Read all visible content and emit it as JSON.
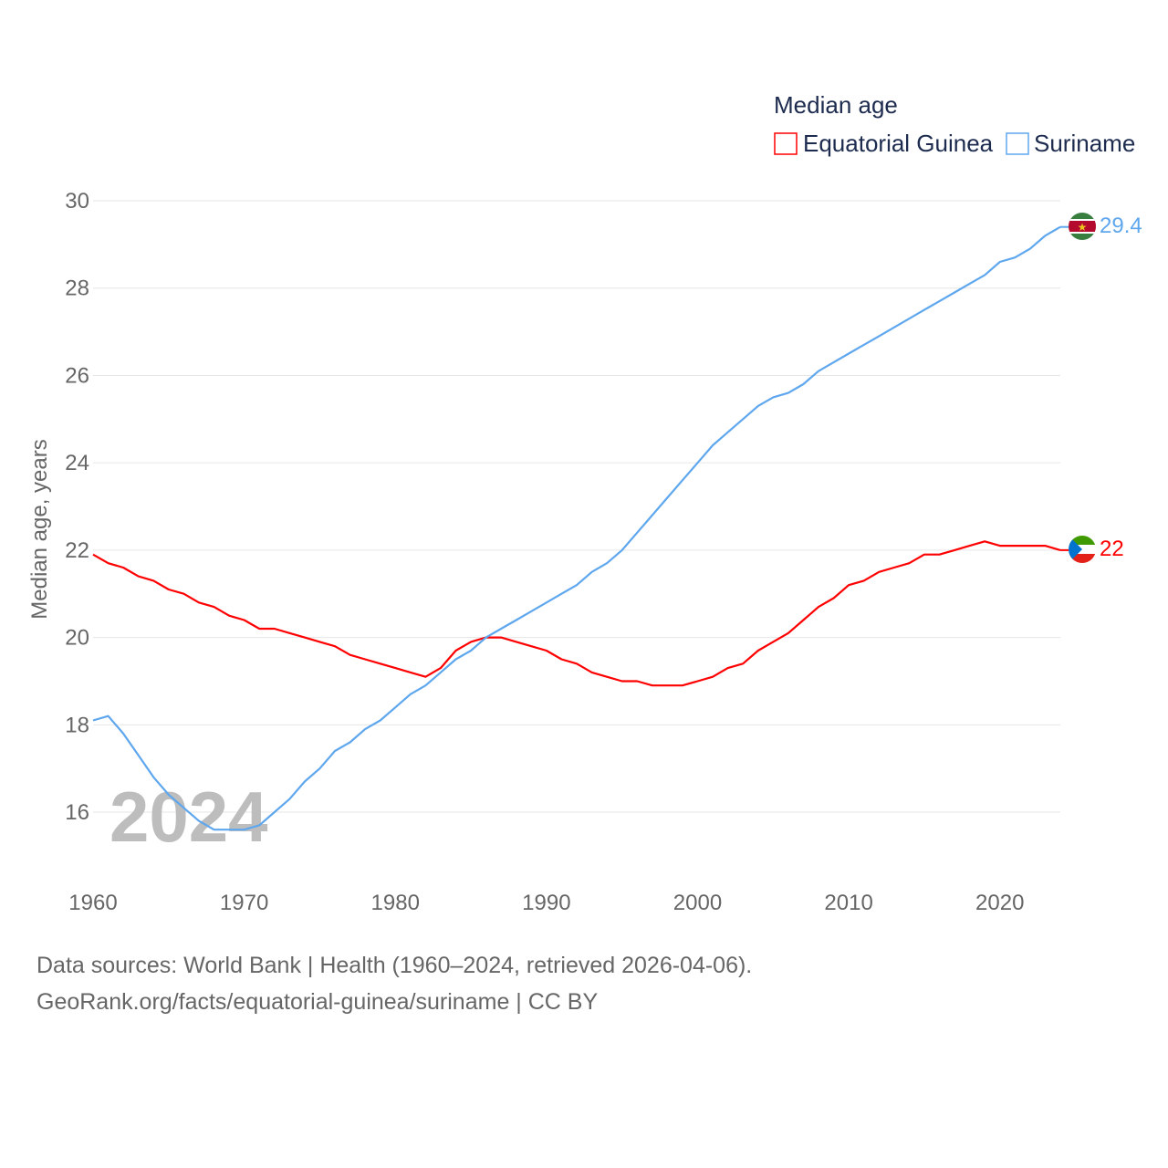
{
  "chart_data": {
    "type": "line",
    "title": "",
    "ylabel": "Median age, years",
    "xlabel": "",
    "xlim": [
      1960,
      2024
    ],
    "ylim": [
      15.5,
      30
    ],
    "yticks": [
      16,
      18,
      20,
      22,
      24,
      26,
      28,
      30
    ],
    "xticks": [
      1960,
      1970,
      1980,
      1990,
      2000,
      2010,
      2020
    ],
    "grid": true,
    "legend": {
      "title": "Median age",
      "placement": "top-right"
    },
    "watermark_year": "2024",
    "x_start": 1960,
    "series": [
      {
        "name": "Equatorial Guinea",
        "color": "#ff0000",
        "end_label": "22",
        "values": [
          21.9,
          21.7,
          21.6,
          21.4,
          21.3,
          21.1,
          21.0,
          20.8,
          20.7,
          20.5,
          20.4,
          20.2,
          20.2,
          20.1,
          20.0,
          19.9,
          19.8,
          19.6,
          19.5,
          19.4,
          19.3,
          19.2,
          19.1,
          19.3,
          19.7,
          19.9,
          20.0,
          20.0,
          19.9,
          19.8,
          19.7,
          19.5,
          19.4,
          19.2,
          19.1,
          19.0,
          19.0,
          18.9,
          18.9,
          18.9,
          19.0,
          19.1,
          19.3,
          19.4,
          19.7,
          19.9,
          20.1,
          20.4,
          20.7,
          20.9,
          21.2,
          21.3,
          21.5,
          21.6,
          21.7,
          21.9,
          21.9,
          22.0,
          22.1,
          22.2,
          22.1,
          22.1,
          22.1,
          22.1,
          22.0
        ]
      },
      {
        "name": "Suriname",
        "color": "#5ea7ee",
        "end_label": "29.4",
        "values": [
          18.1,
          18.2,
          17.8,
          17.3,
          16.8,
          16.4,
          16.1,
          15.8,
          15.6,
          15.6,
          15.6,
          15.7,
          16.0,
          16.3,
          16.7,
          17.0,
          17.4,
          17.6,
          17.9,
          18.1,
          18.4,
          18.7,
          18.9,
          19.2,
          19.5,
          19.7,
          20.0,
          20.2,
          20.4,
          20.6,
          20.8,
          21.0,
          21.2,
          21.5,
          21.7,
          22.0,
          22.4,
          22.8,
          23.2,
          23.6,
          24.0,
          24.4,
          24.7,
          25.0,
          25.3,
          25.5,
          25.6,
          25.8,
          26.1,
          26.3,
          26.5,
          26.7,
          26.9,
          27.1,
          27.3,
          27.5,
          27.7,
          27.9,
          28.1,
          28.3,
          28.6,
          28.7,
          28.9,
          29.2,
          29.4
        ]
      }
    ]
  },
  "footer": {
    "line1": "Data sources: World Bank | Health (1960–2024, retrieved 2026-04-06).",
    "line2": "GeoRank.org/facts/equatorial-guinea/suriname | CC BY"
  }
}
